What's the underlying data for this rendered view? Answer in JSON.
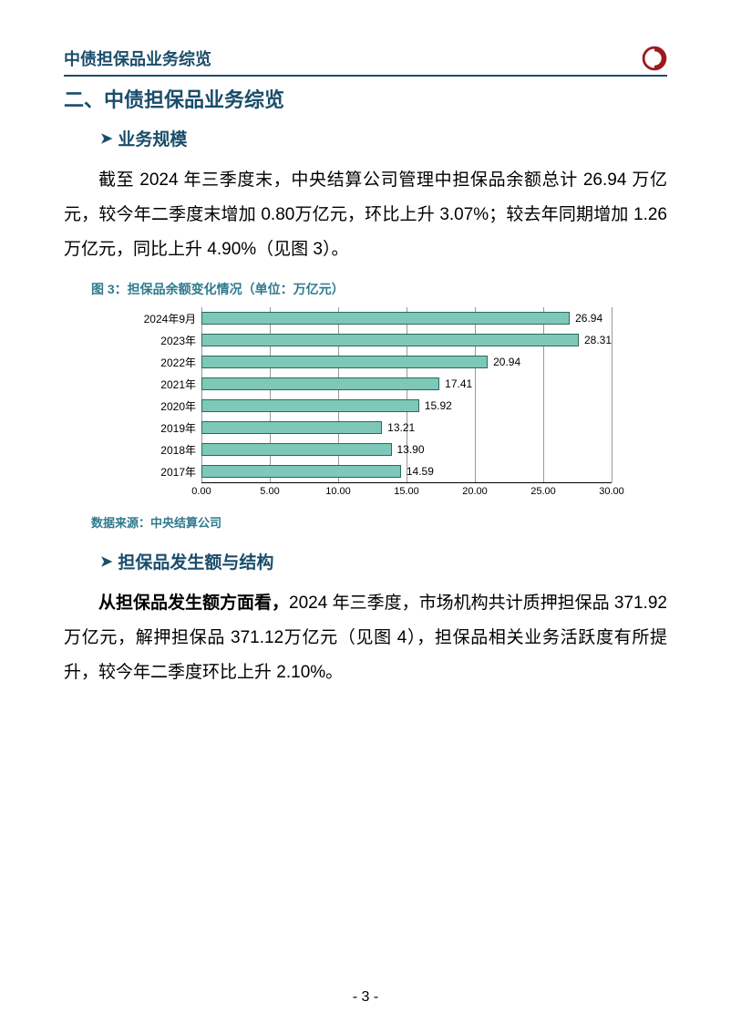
{
  "header": {
    "title": "中债担保品业务综览",
    "logo_colors": {
      "outer": "#9b1b1e",
      "inner": "#9b1b1e"
    }
  },
  "section_title": "二、中债担保品业务综览",
  "sub1": {
    "arrow": "➤",
    "label": "业务规模"
  },
  "para1": "截至 2024 年三季度末，中央结算公司管理中担保品余额总计 26.94 万亿元，较今年二季度末增加 0.80万亿元，环比上升 3.07%；较去年同期增加 1.26 万亿元，同比上升 4.90%（见图 3）。",
  "fig3": {
    "title": "图 3：担保品余额变化情况（单位：万亿元）",
    "type": "horizontal-bar",
    "categories": [
      "2024年9月",
      "2023年",
      "2022年",
      "2021年",
      "2020年",
      "2019年",
      "2018年",
      "2017年"
    ],
    "values": [
      26.94,
      28.31,
      20.94,
      17.41,
      15.92,
      13.21,
      13.9,
      14.59
    ],
    "value_labels": [
      "26.94",
      "28.31",
      "20.94",
      "17.41",
      "15.92",
      "13.21",
      "13.90",
      "14.59"
    ],
    "bar_color": "#7ec8b9",
    "bar_border": "#2a6a5a",
    "xmin": 0.0,
    "xmax": 30.0,
    "xtick_labels": [
      "0.00",
      "5.00",
      "10.00",
      "15.00",
      "20.00",
      "25.00",
      "30.00"
    ],
    "xtick_positions": [
      0,
      5,
      10,
      15,
      20,
      25,
      30
    ],
    "grid_color": "#999999",
    "label_fontsize": 12
  },
  "data_source": "数据来源：中央结算公司",
  "sub2": {
    "arrow": "➤",
    "label": "担保品发生额与结构"
  },
  "para2_bold": "从担保品发生额方面看，",
  "para2_rest": "2024 年三季度，市场机构共计质押担保品 371.92 万亿元，解押担保品 371.12万亿元（见图 4），担保品相关业务活跃度有所提升，较今年二季度环比上升 2.10%。",
  "page_number": "- 3 -"
}
